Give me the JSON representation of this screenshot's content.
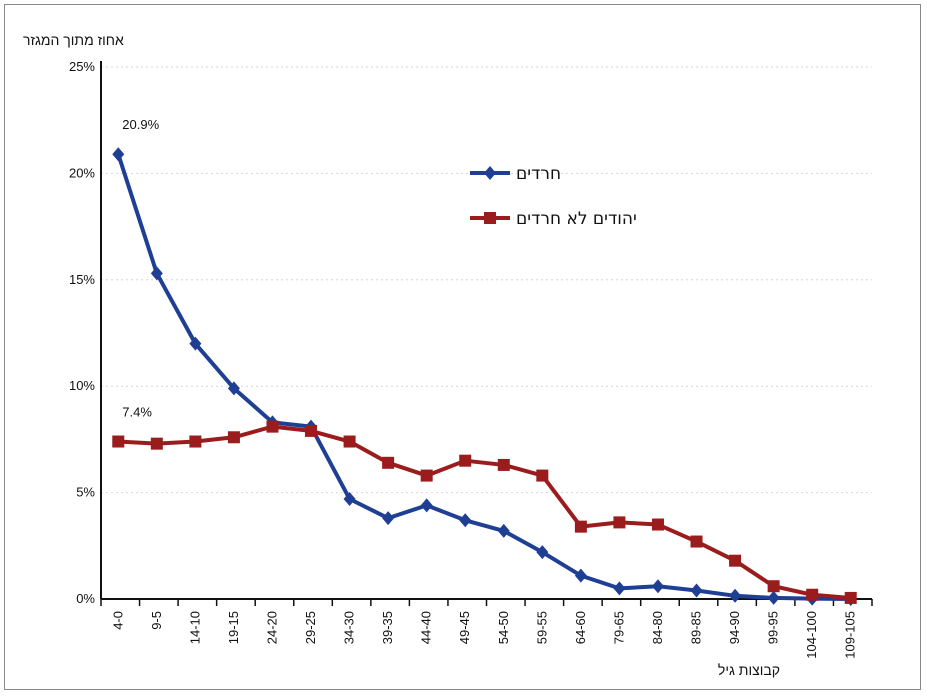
{
  "chart_data": {
    "type": "line",
    "ylabel": "אחוז מתוך המגזר",
    "xlabel": "קבוצות גיל",
    "ylim": [
      0,
      25
    ],
    "yticks": [
      "0%",
      "5%",
      "10%",
      "15%",
      "20%",
      "25%"
    ],
    "grid": true,
    "legend_position": "top-right",
    "categories": [
      "4-0",
      "9-5",
      "14-10",
      "19-15",
      "24-20",
      "29-25",
      "34-30",
      "39-35",
      "44-40",
      "49-45",
      "54-50",
      "59-55",
      "64-60",
      "79-65",
      "84-80",
      "89-85",
      "94-90",
      "99-95",
      "104-100",
      "109-105"
    ],
    "series": [
      {
        "name": "חרדים",
        "color": "#1f3f95",
        "marker": "diamond",
        "values": [
          20.9,
          15.3,
          12.0,
          9.9,
          8.3,
          8.1,
          4.7,
          3.8,
          4.4,
          3.7,
          3.2,
          2.2,
          1.1,
          0.5,
          0.6,
          0.4,
          0.15,
          0.05,
          0.02,
          0.0
        ]
      },
      {
        "name": "יהודים לא חרדים",
        "color": "#9b1c1c",
        "marker": "square",
        "values": [
          7.4,
          7.3,
          7.4,
          7.6,
          8.1,
          7.9,
          7.4,
          6.4,
          5.8,
          6.5,
          6.3,
          5.8,
          3.4,
          3.6,
          3.5,
          2.7,
          1.8,
          0.6,
          0.2,
          0.05
        ]
      }
    ],
    "annotations": [
      {
        "text": "20.9%",
        "series": 0,
        "index": 0
      },
      {
        "text": "7.4%",
        "series": 1,
        "index": 0
      }
    ]
  }
}
